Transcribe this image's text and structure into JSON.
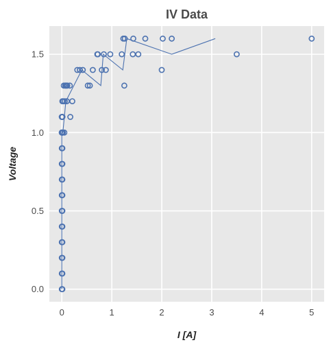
{
  "chart_data": {
    "type": "scatter",
    "title": "IV Data",
    "xlabel": "I [A]",
    "ylabel": "Voltage",
    "xlim": [
      -0.25,
      5.25
    ],
    "ylim": [
      -0.08,
      1.68
    ],
    "xticks": [
      0,
      1,
      2,
      3,
      4,
      5
    ],
    "yticks": [
      0.0,
      0.5,
      1.0,
      1.5
    ],
    "xtick_labels": [
      "0",
      "1",
      "2",
      "3",
      "4",
      "5"
    ],
    "ytick_labels": [
      "0.0",
      "0.5",
      "1.0",
      "1.5"
    ],
    "grid": true,
    "colors": {
      "background": "#e8e8e8",
      "grid": "#ffffff",
      "series": "#4c72b0"
    },
    "series": [
      {
        "type": "scatter",
        "x": [
          0,
          0.01,
          0,
          0.01,
          0,
          0.01,
          0,
          0.01,
          0,
          0.01,
          0,
          0.01,
          0,
          0.01,
          0,
          0.01,
          0,
          0.01,
          0,
          0.01,
          0,
          0.01,
          0,
          0.01,
          0,
          0.01,
          0,
          0.01,
          0,
          0.01,
          0,
          0.01,
          0.03,
          0.06,
          0.02,
          0.05,
          0.1,
          0.17,
          0.01,
          0.07,
          0.04,
          0.1,
          0.21,
          0.07,
          0.09,
          0.11,
          0.16,
          0.52,
          0.56,
          0.31,
          0.36,
          0.42,
          0.62,
          0.8,
          0.88,
          0.71,
          0.72,
          0.84,
          0.97,
          1.2,
          1.42,
          1.53,
          1.23,
          1.26,
          1.43,
          1.67,
          2.02,
          2.2,
          1.25,
          2.0,
          3.5,
          5.0
        ],
        "y": [
          0.0,
          0.0,
          0.1,
          0.1,
          0.2,
          0.2,
          0.3,
          0.3,
          0.4,
          0.4,
          0.5,
          0.5,
          0.6,
          0.6,
          0.7,
          0.7,
          0.8,
          0.8,
          0.9,
          0.9,
          1.0,
          1.0,
          1.0,
          1.0,
          1.0,
          1.1,
          1.1,
          1.1,
          1.1,
          1.0,
          1.0,
          1.2,
          1.2,
          1.2,
          1.0,
          1.0,
          1.2,
          1.1,
          1.1,
          1.3,
          1.3,
          1.3,
          1.2,
          1.3,
          1.3,
          1.3,
          1.3,
          1.3,
          1.3,
          1.4,
          1.4,
          1.4,
          1.4,
          1.4,
          1.4,
          1.5,
          1.5,
          1.5,
          1.5,
          1.5,
          1.5,
          1.5,
          1.6,
          1.6,
          1.6,
          1.6,
          1.6,
          1.6,
          1.3,
          1.4,
          1.5,
          1.6
        ]
      },
      {
        "type": "line",
        "x": [
          0,
          0,
          0.02,
          0.08,
          0.4,
          0.78,
          0.83,
          1.22,
          1.3,
          2.2,
          3.07
        ],
        "y": [
          0.0,
          1.0,
          1.0,
          1.2,
          1.4,
          1.3,
          1.5,
          1.4,
          1.6,
          1.5,
          1.6
        ]
      }
    ]
  }
}
